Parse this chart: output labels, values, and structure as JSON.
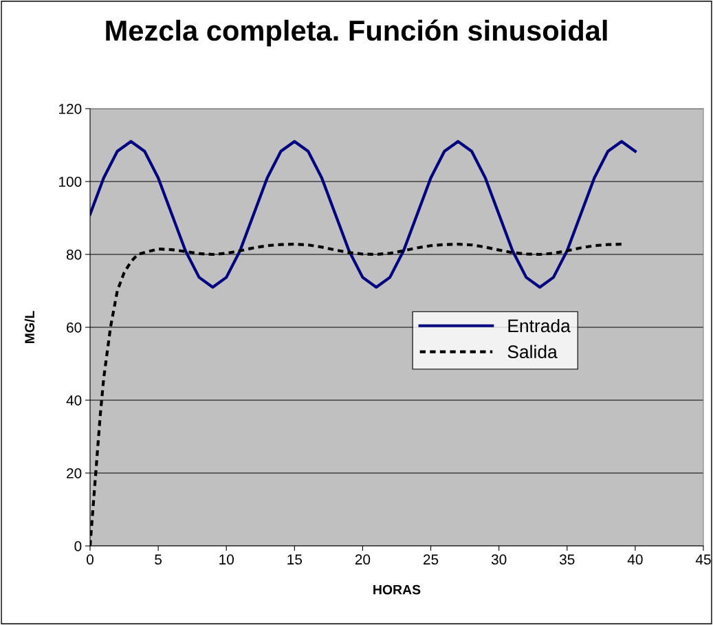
{
  "chart_data": {
    "type": "line",
    "title": "Mezcla completa. Función sinusoidal",
    "xlabel": "HORAS",
    "ylabel": "MG/L",
    "xlim": [
      0,
      45
    ],
    "xticks": [
      0,
      5,
      10,
      15,
      20,
      25,
      30,
      35,
      40,
      45
    ],
    "ylim": [
      0,
      120
    ],
    "yticks": [
      0,
      20,
      40,
      60,
      80,
      100,
      120
    ],
    "grid": "y",
    "legend": "center right",
    "marker": "none",
    "series": [
      {
        "name": "Entrada",
        "color": "#000080",
        "line_style": "solid",
        "x": [
          0,
          1,
          2,
          3,
          4,
          5,
          6,
          7,
          8,
          9,
          10,
          11,
          12,
          13,
          14,
          15,
          16,
          17,
          18,
          19,
          20,
          21,
          22,
          23,
          24,
          25,
          26,
          27,
          28,
          29,
          30,
          31,
          32,
          33,
          34,
          35,
          36,
          37,
          38,
          39,
          40
        ],
        "values": [
          91,
          101,
          108.3,
          111,
          108.3,
          101,
          91,
          81,
          73.7,
          71,
          73.7,
          81,
          91,
          101,
          108.3,
          111,
          108.3,
          101,
          91,
          81,
          73.7,
          71,
          73.7,
          81,
          91,
          101,
          108.3,
          111,
          108.3,
          101,
          91,
          81,
          73.7,
          71,
          73.7,
          81,
          91,
          101,
          108.3,
          111,
          108.3
        ]
      },
      {
        "name": "Salida",
        "color": "#000000",
        "line_style": "dashed",
        "x": [
          0,
          0.25,
          0.5,
          0.75,
          1,
          1.5,
          2,
          2.5,
          3,
          3.5,
          4,
          5,
          6,
          7,
          8,
          9,
          10,
          11,
          12,
          13,
          14,
          15,
          16,
          17,
          18,
          19,
          20,
          21,
          22,
          23,
          24,
          25,
          26,
          27,
          28,
          29,
          30,
          31,
          32,
          33,
          34,
          35,
          36,
          37,
          38,
          39
        ],
        "values": [
          0,
          12,
          24,
          36,
          46,
          60,
          70,
          75,
          78,
          80,
          80.5,
          81.5,
          81.3,
          80.8,
          80.2,
          80,
          80.3,
          81,
          81.8,
          82.4,
          82.7,
          82.8,
          82.6,
          82,
          81.2,
          80.5,
          80.1,
          80,
          80.3,
          81,
          81.8,
          82.4,
          82.7,
          82.8,
          82.6,
          82,
          81.2,
          80.5,
          80.1,
          80,
          80.3,
          81,
          81.8,
          82.4,
          82.7,
          82.8
        ]
      }
    ]
  }
}
